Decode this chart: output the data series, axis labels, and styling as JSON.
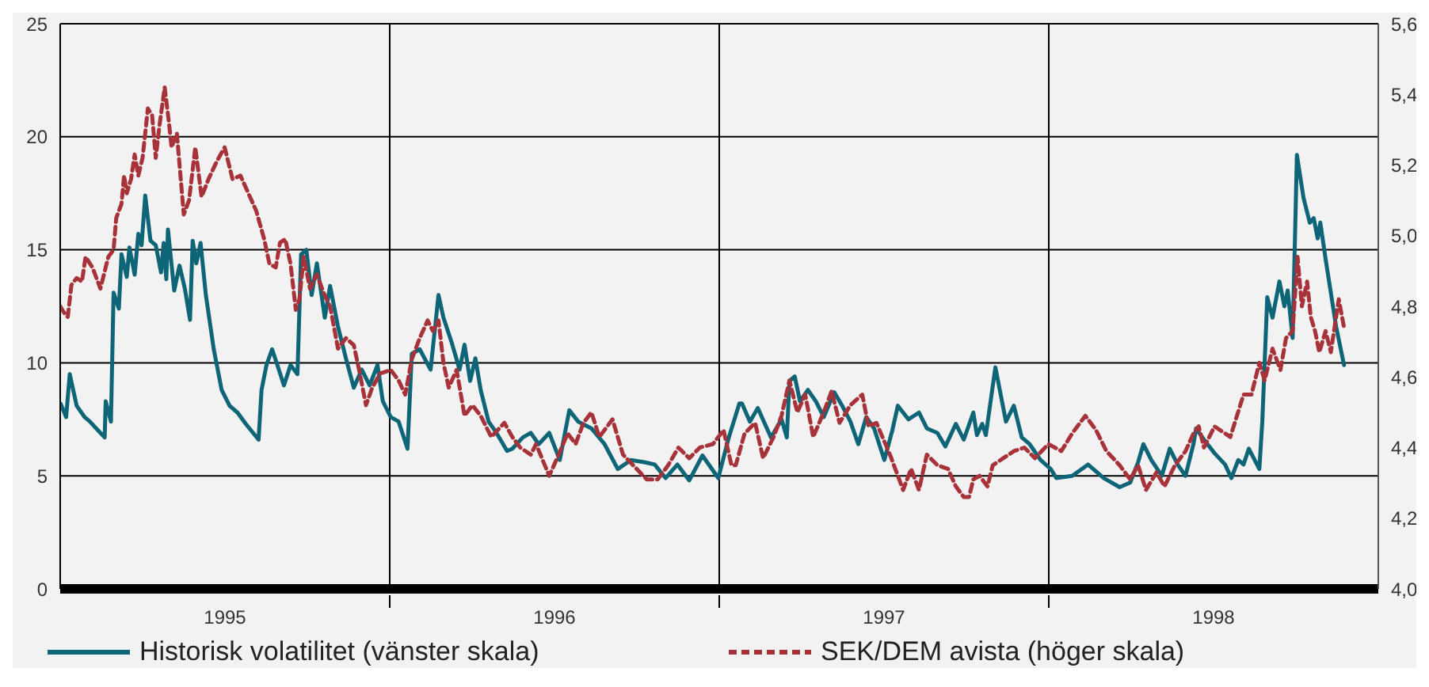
{
  "chart_data": {
    "type": "line",
    "xlim": [
      1995,
      1999
    ],
    "xticks": [
      {
        "value": 1995.5,
        "label": "1995"
      },
      {
        "value": 1996,
        "label": null
      },
      {
        "value": 1996.5,
        "label": "1996"
      },
      {
        "value": 1997,
        "label": null
      },
      {
        "value": 1997.5,
        "label": "1997"
      },
      {
        "value": 1998,
        "label": null
      },
      {
        "value": 1998.5,
        "label": "1998"
      }
    ],
    "ylim": [
      0,
      25
    ],
    "yticks": [
      0,
      5,
      10,
      15,
      20,
      25
    ],
    "y2lim": [
      4,
      5.6
    ],
    "y2ticks": [
      {
        "value": 4,
        "label": "4,0"
      },
      {
        "value": 4.2,
        "label": "4,2"
      },
      {
        "value": 4.4,
        "label": "4,4"
      },
      {
        "value": 4.6,
        "label": "4,6"
      },
      {
        "value": 4.8,
        "label": "4,8"
      },
      {
        "value": 5,
        "label": "5,0"
      },
      {
        "value": 5.2,
        "label": "5,2"
      },
      {
        "value": 5.4,
        "label": "5,4"
      },
      {
        "value": 5.6,
        "label": "5,6"
      }
    ],
    "grid": true,
    "legend": "bottom",
    "series": [
      {
        "name": "Historisk volatilitet (vänster skala)",
        "color": "#0e6577",
        "line_style": "solid",
        "axis": "y",
        "x": [
          1995.001,
          1995.018,
          1995.029,
          1995.05,
          1995.074,
          1995.09,
          1995.122,
          1995.135,
          1995.138,
          1995.154,
          1995.162,
          1995.178,
          1995.186,
          1995.202,
          1995.21,
          1995.226,
          1995.237,
          1995.247,
          1995.258,
          1995.274,
          1995.29,
          1995.306,
          1995.314,
          1995.322,
          1995.327,
          1995.346,
          1995.362,
          1995.378,
          1995.394,
          1995.402,
          1995.413,
          1995.426,
          1995.442,
          1995.466,
          1995.49,
          1995.514,
          1995.538,
          1995.563,
          1995.602,
          1995.611,
          1995.626,
          1995.643,
          1995.659,
          1995.679,
          1995.699,
          1995.72,
          1995.731,
          1995.747,
          1995.763,
          1995.779,
          1995.803,
          1995.819,
          1995.843,
          1995.867,
          1995.891,
          1995.915,
          1995.939,
          1995.963,
          1995.979,
          1996.003,
          1996.027,
          1996.054,
          1996.067,
          1996.091,
          1996.124,
          1996.148,
          1996.163,
          1996.188,
          1996.212,
          1996.227,
          1996.244,
          1996.26,
          1996.276,
          1996.3,
          1996.324,
          1996.356,
          1996.372,
          1996.404,
          1996.428,
          1996.452,
          1996.484,
          1996.516,
          1996.545,
          1996.572,
          1996.612,
          1996.652,
          1996.692,
          1996.732,
          1996.773,
          1996.804,
          1996.837,
          1996.873,
          1996.909,
          1996.949,
          1996.997,
          1997.029,
          1997.061,
          1997.069,
          1997.093,
          1997.117,
          1997.157,
          1997.189,
          1997.205,
          1997.213,
          1997.229,
          1997.245,
          1997.269,
          1997.293,
          1997.317,
          1997.349,
          1997.373,
          1997.398,
          1997.422,
          1997.446,
          1997.47,
          1997.501,
          1997.525,
          1997.542,
          1997.574,
          1997.606,
          1997.63,
          1997.662,
          1997.686,
          1997.718,
          1997.742,
          1997.771,
          1997.782,
          1997.798,
          1997.809,
          1997.838,
          1997.87,
          1997.894,
          1997.918,
          1997.942,
          1997.975,
          1998.006,
          1998.023,
          1998.071,
          1998.119,
          1998.167,
          1998.215,
          1998.247,
          1998.271,
          1998.287,
          1998.311,
          1998.343,
          1998.367,
          1998.391,
          1998.415,
          1998.439,
          1998.447,
          1998.471,
          1998.503,
          1998.535,
          1998.554,
          1998.575,
          1998.591,
          1998.607,
          1998.639,
          1998.648,
          1998.663,
          1998.679,
          1998.7,
          1998.715,
          1998.725,
          1998.74,
          1998.753,
          1998.773,
          1998.792,
          1998.804,
          1998.816,
          1998.824,
          1998.84,
          1998.872,
          1998.896
        ],
        "values": [
          8.2,
          7.6,
          9.5,
          8.1,
          7.6,
          7.4,
          6.9,
          6.7,
          8.3,
          7.4,
          13.1,
          12.4,
          14.8,
          13.8,
          15.1,
          13.9,
          15.7,
          15.2,
          17.4,
          15.4,
          15.2,
          14.0,
          15.3,
          13.7,
          15.9,
          13.2,
          14.3,
          13.3,
          11.9,
          15.4,
          14.4,
          15.3,
          13.0,
          10.6,
          8.8,
          8.1,
          7.8,
          7.3,
          6.6,
          8.8,
          9.9,
          10.6,
          9.9,
          9.0,
          9.9,
          9.5,
          14.8,
          15.0,
          13.0,
          14.4,
          12.0,
          13.4,
          11.6,
          10.2,
          8.9,
          9.7,
          9.0,
          9.9,
          8.3,
          7.6,
          7.4,
          6.2,
          10.4,
          10.6,
          9.7,
          13.0,
          12.0,
          10.9,
          9.7,
          10.8,
          9.2,
          10.2,
          8.8,
          7.4,
          6.9,
          6.1,
          6.2,
          6.7,
          6.9,
          6.4,
          6.9,
          5.7,
          7.9,
          7.4,
          7.1,
          6.4,
          5.3,
          5.7,
          5.6,
          5.5,
          4.9,
          5.5,
          4.8,
          5.9,
          4.9,
          6.7,
          8.2,
          8.2,
          7.4,
          8.0,
          6.7,
          7.5,
          6.7,
          9.2,
          9.4,
          8.3,
          8.8,
          8.3,
          7.6,
          8.7,
          8.1,
          7.4,
          6.4,
          7.6,
          7.1,
          5.7,
          7.0,
          8.1,
          7.5,
          7.8,
          7.1,
          6.9,
          6.3,
          7.3,
          6.6,
          7.8,
          6.8,
          7.3,
          6.8,
          9.8,
          7.4,
          8.1,
          6.7,
          6.4,
          5.7,
          5.3,
          4.9,
          5.0,
          5.5,
          4.9,
          4.5,
          4.7,
          5.6,
          6.4,
          5.7,
          5.0,
          6.2,
          5.5,
          5.0,
          6.4,
          7.1,
          6.6,
          6.0,
          5.5,
          4.9,
          5.7,
          5.5,
          6.2,
          5.3,
          7.4,
          12.9,
          12.0,
          13.6,
          12.5,
          13.2,
          11.1,
          19.2,
          17.3,
          16.2,
          16.4,
          15.5,
          16.2,
          14.6,
          11.6,
          9.9
        ]
      },
      {
        "name": "SEK/DEM avista (höger skala)",
        "color": "#a8323a",
        "line_style": "dashed",
        "axis": "y2",
        "x": [
          1995.0,
          1995.013,
          1995.023,
          1995.034,
          1995.05,
          1995.066,
          1995.077,
          1995.098,
          1995.122,
          1995.146,
          1995.162,
          1995.17,
          1995.186,
          1995.194,
          1995.202,
          1995.215,
          1995.226,
          1995.237,
          1995.25,
          1995.266,
          1995.279,
          1995.29,
          1995.301,
          1995.317,
          1995.33,
          1995.338,
          1995.354,
          1995.375,
          1995.391,
          1995.41,
          1995.429,
          1995.45,
          1995.475,
          1995.499,
          1995.523,
          1995.547,
          1995.571,
          1995.595,
          1995.619,
          1995.635,
          1995.654,
          1995.667,
          1995.683,
          1995.699,
          1995.715,
          1995.726,
          1995.739,
          1995.758,
          1995.779,
          1995.803,
          1995.819,
          1995.843,
          1995.867,
          1995.891,
          1995.907,
          1995.928,
          1995.947,
          1995.971,
          1996.003,
          1996.027,
          1996.047,
          1996.067,
          1996.091,
          1996.115,
          1996.131,
          1996.148,
          1996.163,
          1996.179,
          1996.203,
          1996.227,
          1996.251,
          1996.276,
          1996.308,
          1996.348,
          1996.372,
          1996.396,
          1996.428,
          1996.444,
          1996.484,
          1996.508,
          1996.54,
          1996.564,
          1996.588,
          1996.612,
          1996.636,
          1996.676,
          1996.708,
          1996.749,
          1996.78,
          1996.813,
          1996.845,
          1996.876,
          1996.909,
          1996.941,
          1996.981,
          1997.013,
          1997.037,
          1997.05,
          1997.077,
          1997.109,
          1997.133,
          1997.165,
          1997.189,
          1997.213,
          1997.237,
          1997.261,
          1997.285,
          1997.317,
          1997.341,
          1997.365,
          1997.398,
          1997.434,
          1997.453,
          1997.477,
          1997.518,
          1997.558,
          1997.582,
          1997.606,
          1997.63,
          1997.662,
          1997.694,
          1997.718,
          1997.742,
          1997.758,
          1997.771,
          1997.79,
          1997.814,
          1997.83,
          1997.862,
          1997.894,
          1997.926,
          1997.958,
          1997.999,
          1998.038,
          1998.071,
          1998.111,
          1998.143,
          1998.175,
          1998.215,
          1998.247,
          1998.271,
          1998.295,
          1998.327,
          1998.351,
          1998.383,
          1998.415,
          1998.439,
          1998.455,
          1998.471,
          1998.503,
          1998.551,
          1998.591,
          1998.615,
          1998.639,
          1998.655,
          1998.679,
          1998.703,
          1998.72,
          1998.74,
          1998.755,
          1998.768,
          1998.784,
          1998.795,
          1998.808,
          1998.821,
          1998.84,
          1998.856,
          1998.88,
          1998.896
        ],
        "values": [
          4.8,
          4.78,
          4.77,
          4.86,
          4.88,
          4.87,
          4.94,
          4.91,
          4.85,
          4.94,
          4.96,
          5.05,
          5.09,
          5.17,
          5.12,
          5.16,
          5.23,
          5.17,
          5.22,
          5.36,
          5.34,
          5.22,
          5.31,
          5.42,
          5.32,
          5.25,
          5.29,
          5.06,
          5.1,
          5.25,
          5.11,
          5.16,
          5.21,
          5.25,
          5.16,
          5.17,
          5.12,
          5.07,
          4.99,
          4.92,
          4.91,
          4.98,
          4.99,
          4.92,
          4.79,
          4.82,
          4.94,
          4.85,
          4.89,
          4.83,
          4.8,
          4.68,
          4.71,
          4.69,
          4.62,
          4.52,
          4.57,
          4.61,
          4.62,
          4.59,
          4.55,
          4.65,
          4.71,
          4.76,
          4.73,
          4.76,
          4.64,
          4.57,
          4.62,
          4.49,
          4.52,
          4.49,
          4.43,
          4.47,
          4.43,
          4.4,
          4.38,
          4.41,
          4.32,
          4.37,
          4.44,
          4.41,
          4.47,
          4.5,
          4.43,
          4.48,
          4.38,
          4.34,
          4.31,
          4.31,
          4.35,
          4.4,
          4.37,
          4.4,
          4.41,
          4.45,
          4.35,
          4.35,
          4.44,
          4.47,
          4.37,
          4.43,
          4.49,
          4.59,
          4.5,
          4.55,
          4.43,
          4.5,
          4.56,
          4.47,
          4.52,
          4.55,
          4.46,
          4.47,
          4.38,
          4.28,
          4.34,
          4.28,
          4.38,
          4.35,
          4.34,
          4.29,
          4.26,
          4.26,
          4.31,
          4.32,
          4.29,
          4.35,
          4.37,
          4.39,
          4.4,
          4.37,
          4.41,
          4.39,
          4.44,
          4.49,
          4.45,
          4.39,
          4.35,
          4.31,
          4.35,
          4.28,
          4.33,
          4.29,
          4.35,
          4.39,
          4.44,
          4.46,
          4.4,
          4.46,
          4.43,
          4.55,
          4.55,
          4.64,
          4.59,
          4.68,
          4.62,
          4.71,
          4.73,
          4.94,
          4.8,
          4.87,
          4.77,
          4.73,
          4.67,
          4.73,
          4.67,
          4.82,
          4.74
        ]
      }
    ]
  }
}
